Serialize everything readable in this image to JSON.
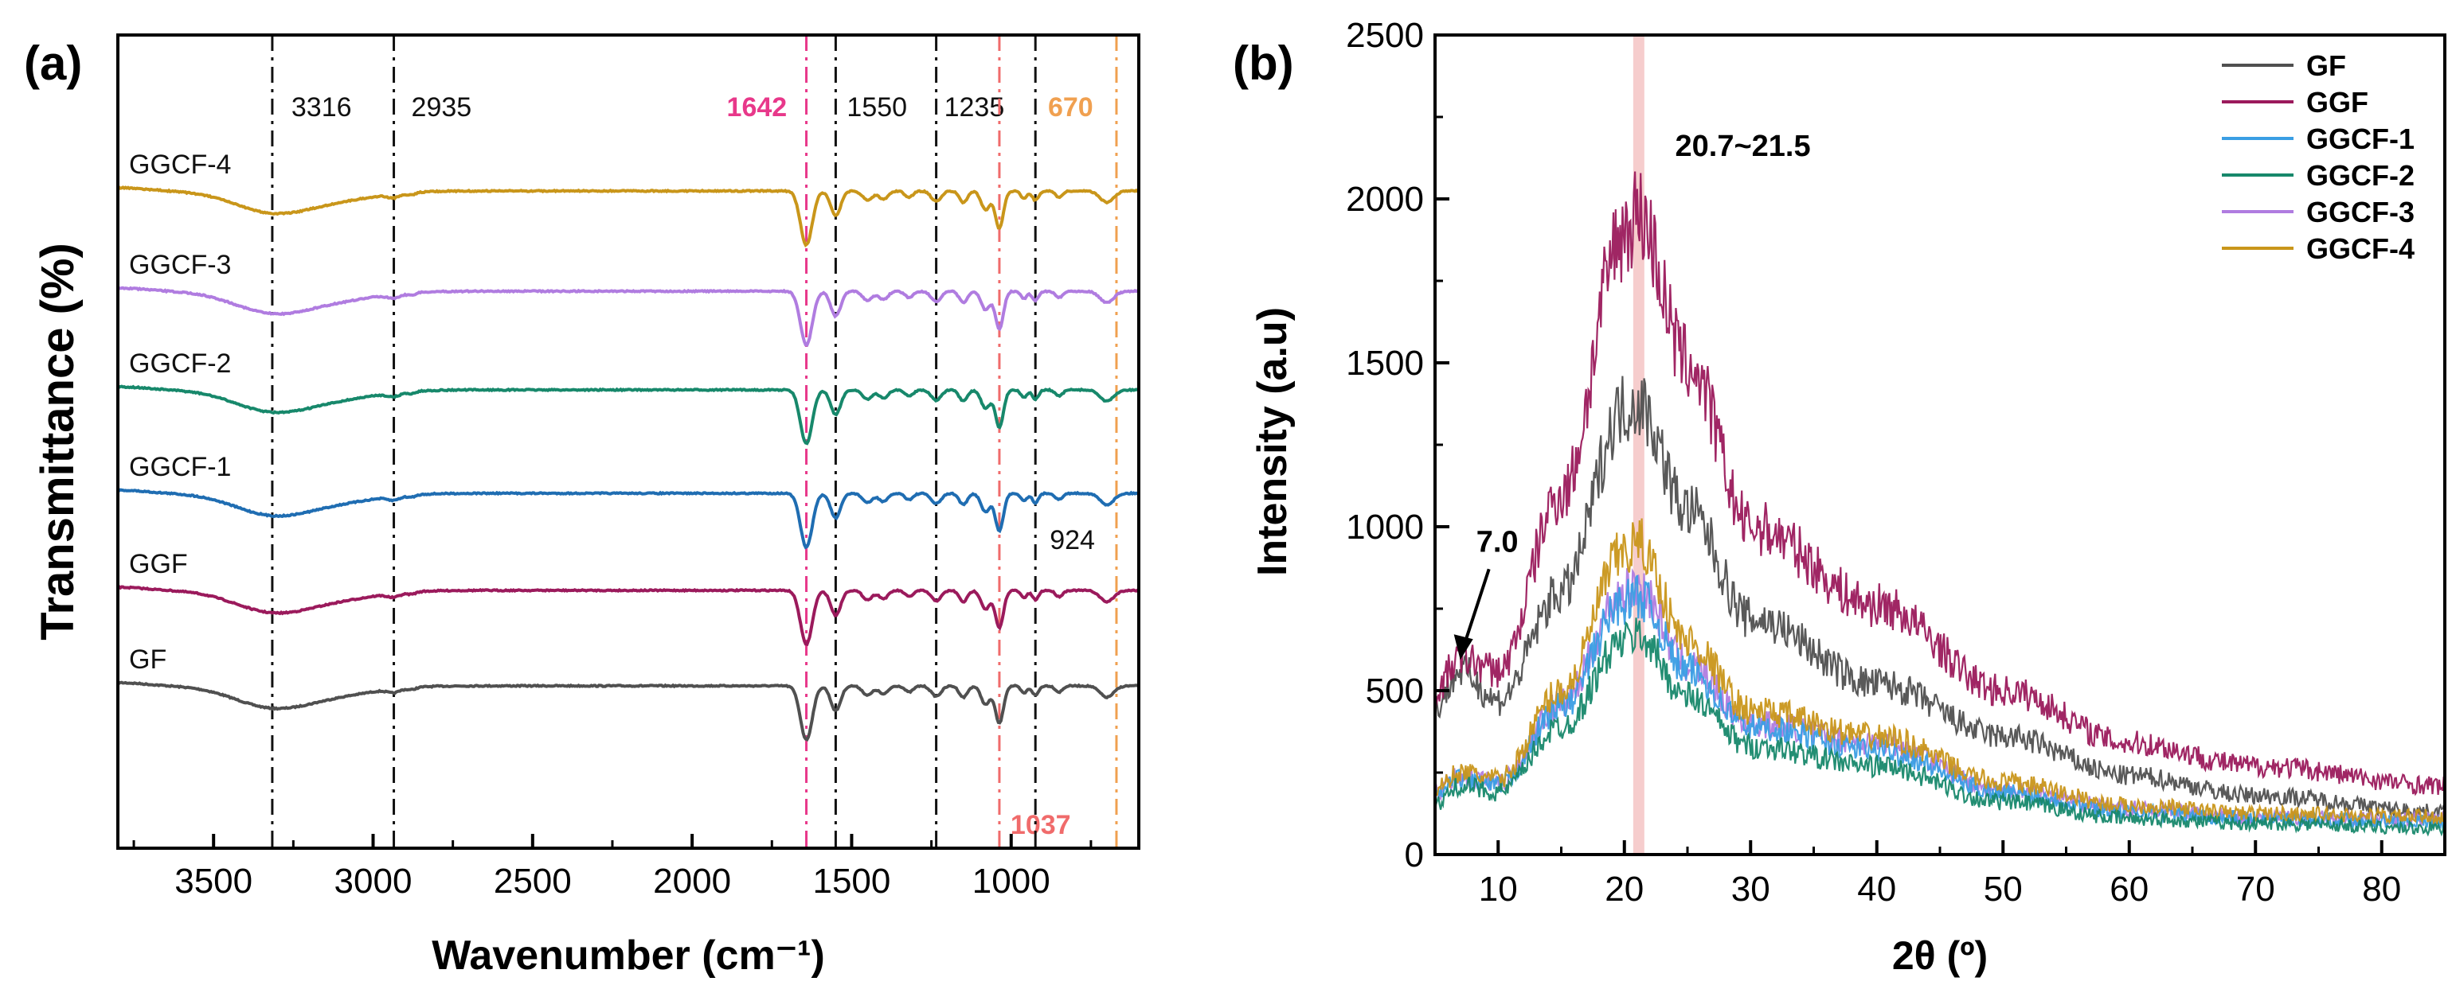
{
  "chart_data": [
    {
      "type": "line",
      "panel_label": "(a)",
      "xlabel": "Wavenumber (cm⁻¹)",
      "ylabel": "Transmittance (%)",
      "xlim": [
        3800,
        600
      ],
      "x_reversed": true,
      "y_ticks_shown": false,
      "xticks": [
        3500,
        3000,
        2500,
        2000,
        1500,
        1000
      ],
      "series": [
        {
          "name": "GF",
          "color": "#505050"
        },
        {
          "name": "GGF",
          "color": "#9b1a5c"
        },
        {
          "name": "GGCF-1",
          "color": "#1f6db2"
        },
        {
          "name": "GGCF-2",
          "color": "#17886b"
        },
        {
          "name": "GGCF-3",
          "color": "#b07ce0"
        },
        {
          "name": "GGCF-4",
          "color": "#c9961a"
        }
      ],
      "reference_lines": [
        {
          "x": 3316,
          "label": "3316",
          "color": "#111111",
          "style": "dash-dot"
        },
        {
          "x": 2935,
          "label": "2935",
          "color": "#111111",
          "style": "dash-dot"
        },
        {
          "x": 1642,
          "label": "1642",
          "color": "#e8388a",
          "style": "dash-dot"
        },
        {
          "x": 1550,
          "label": "1550",
          "color": "#111111",
          "style": "dash-dot"
        },
        {
          "x": 1235,
          "label": "1235",
          "color": "#111111",
          "style": "dash-dot"
        },
        {
          "x": 1037,
          "label": "1037",
          "color": "#f06b6b",
          "style": "dash-dot"
        },
        {
          "x": 924,
          "label": "924",
          "color": "#111111",
          "style": "dash-dot"
        },
        {
          "x": 670,
          "label": "670",
          "color": "#f0a050",
          "style": "dash-dot"
        }
      ]
    },
    {
      "type": "line",
      "panel_label": "(b)",
      "xlabel": "2θ (º)",
      "ylabel": "Intensity (a.u)",
      "xlim": [
        5,
        85
      ],
      "ylim": [
        0,
        2500
      ],
      "xticks": [
        10,
        20,
        30,
        40,
        50,
        60,
        70,
        80
      ],
      "yticks": [
        0,
        500,
        1000,
        1500,
        2000,
        2500
      ],
      "legend_position": "top-right",
      "highlight_band": {
        "x_range": [
          20.7,
          21.5
        ],
        "label": "20.7~21.5",
        "color": "#f5c4c4"
      },
      "annotations": [
        {
          "text": "7.0",
          "x": 7.0,
          "y": 560
        }
      ],
      "series": [
        {
          "name": "GF",
          "color": "#505050",
          "x": [
            5,
            7,
            10,
            15,
            20,
            21,
            25,
            30,
            40,
            50,
            60,
            70,
            85
          ],
          "y": [
            450,
            560,
            470,
            800,
            1360,
            1380,
            1050,
            720,
            520,
            360,
            240,
            180,
            130
          ]
        },
        {
          "name": "GGF",
          "color": "#9b1a5c",
          "x": [
            5,
            7,
            10,
            15,
            20,
            21,
            25,
            30,
            40,
            50,
            60,
            70,
            85
          ],
          "y": [
            500,
            600,
            560,
            1100,
            1900,
            1960,
            1500,
            1000,
            760,
            500,
            340,
            270,
            210
          ]
        },
        {
          "name": "GGCF-1",
          "color": "#3a9ee4",
          "x": [
            5,
            7,
            10,
            15,
            20,
            21,
            25,
            30,
            40,
            50,
            60,
            70,
            85
          ],
          "y": [
            180,
            230,
            210,
            450,
            770,
            790,
            560,
            390,
            320,
            190,
            130,
            110,
            100
          ]
        },
        {
          "name": "GGCF-2",
          "color": "#17886b",
          "x": [
            5,
            7,
            10,
            15,
            20,
            21,
            25,
            30,
            40,
            50,
            60,
            70,
            85
          ],
          "y": [
            150,
            210,
            190,
            390,
            650,
            670,
            480,
            330,
            270,
            160,
            110,
            95,
            80
          ]
        },
        {
          "name": "GGCF-3",
          "color": "#b07ce0",
          "x": [
            5,
            7,
            10,
            15,
            20,
            21,
            25,
            30,
            40,
            50,
            60,
            70,
            85
          ],
          "y": [
            190,
            240,
            220,
            460,
            800,
            820,
            580,
            400,
            340,
            200,
            140,
            115,
            105
          ]
        },
        {
          "name": "GGCF-4",
          "color": "#c9961a",
          "x": [
            5,
            7,
            10,
            15,
            20,
            21,
            25,
            30,
            40,
            50,
            60,
            70,
            85
          ],
          "y": [
            200,
            250,
            230,
            500,
            920,
            950,
            650,
            440,
            360,
            220,
            150,
            125,
            115
          ]
        }
      ]
    }
  ]
}
